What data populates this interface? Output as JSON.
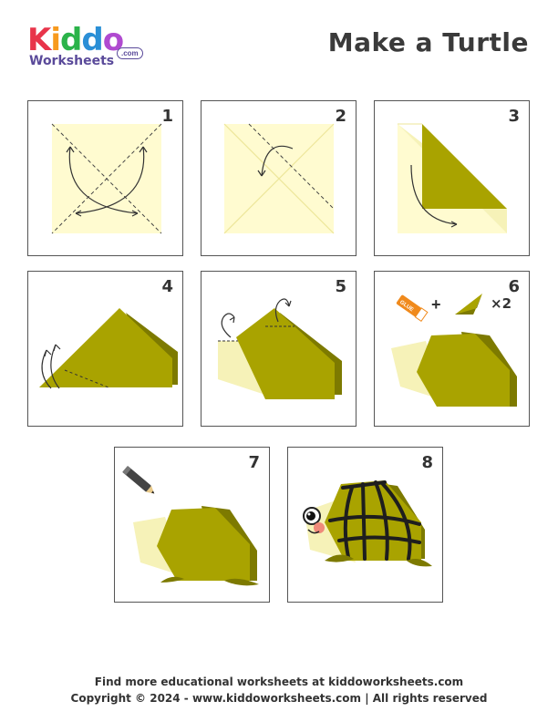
{
  "header": {
    "logo_word": [
      "K",
      "i",
      "d",
      "d",
      "o"
    ],
    "logo_sub": "Worksheets",
    "logo_domain": ".com",
    "title": "Make a Turtle"
  },
  "steps": [
    {
      "number": "1"
    },
    {
      "number": "2"
    },
    {
      "number": "3"
    },
    {
      "number": "4"
    },
    {
      "number": "5"
    },
    {
      "number": "6",
      "multiplier": "×2"
    },
    {
      "number": "7"
    },
    {
      "number": "8"
    }
  ],
  "glue_label": "GLUE",
  "colors": {
    "paper": "#fffbd0",
    "olive": "#a9a300",
    "olive_dark": "#7d7a00",
    "cream": "#f6f2b8"
  },
  "footer": {
    "line1": "Find more educational worksheets at kiddoworksheets.com",
    "line2": "Copyright © 2024 - www.kiddoworksheets.com  |  All rights reserved"
  }
}
